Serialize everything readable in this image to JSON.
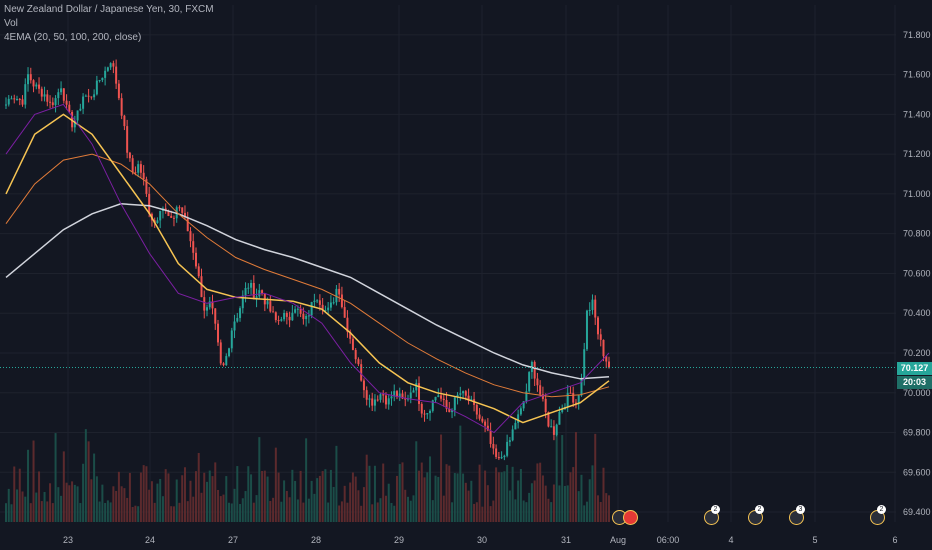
{
  "header": {
    "symbol": "New Zealand Dollar / Japanese Yen, 30, FXCM",
    "vol_label": "Vol",
    "indicator": "4EMA (20, 50, 100, 200, close)"
  },
  "colors": {
    "background": "#131722",
    "up": "#26a69a",
    "down": "#ef5350",
    "ema20": "#7b1fa2",
    "ema50": "#f6c453",
    "ema100": "#e07b39",
    "ema200": "#d1d4dc",
    "price_line": "#26a69a",
    "time_tag": "#26a69a"
  },
  "price_tags": {
    "last_price": "70.127",
    "countdown": "20:03"
  },
  "events": [
    {
      "name": "event-marker-1",
      "badge": ""
    },
    {
      "name": "event-marker-2",
      "badge": ""
    },
    {
      "name": "event-marker-3",
      "badge": "2"
    },
    {
      "name": "event-marker-4",
      "badge": "2"
    },
    {
      "name": "event-marker-5",
      "badge": "3"
    },
    {
      "name": "event-marker-6",
      "badge": "2"
    }
  ],
  "chart_data": {
    "type": "candlestick",
    "ylim": [
      69.35,
      71.95
    ],
    "y_ticks": [
      "71.800",
      "71.600",
      "71.400",
      "71.200",
      "71.000",
      "70.800",
      "70.600",
      "70.400",
      "70.200",
      "70.000",
      "69.800",
      "69.600",
      "69.400"
    ],
    "x_ticks": [
      "23",
      "24",
      "27",
      "28",
      "29",
      "30",
      "31",
      "Aug",
      "06:00",
      "4",
      "5",
      "6"
    ],
    "last_price": 70.127,
    "price_path": [
      [
        71.45,
        71.5,
        71.48,
        71.47,
        71.6,
        71.55,
        71.52,
        71.5,
        71.45,
        71.48
      ],
      [
        71.55,
        71.42,
        71.35,
        71.4,
        71.5,
        71.48,
        71.52,
        71.58,
        71.62,
        71.68
      ],
      [
        71.55,
        71.4,
        71.2,
        71.1,
        71.15,
        71.05,
        70.9,
        70.85,
        70.95,
        70.9
      ],
      [
        70.85,
        70.95,
        70.9,
        70.8,
        70.7,
        70.55,
        70.4,
        70.45,
        70.3,
        70.1
      ],
      [
        70.2,
        70.35,
        70.4,
        70.5,
        70.55,
        70.48,
        70.52,
        70.45,
        70.4,
        70.35
      ],
      [
        70.4,
        70.35,
        70.45,
        70.4,
        70.35,
        70.42,
        70.5,
        70.45,
        70.4,
        70.45
      ],
      [
        70.55,
        70.4,
        70.3,
        70.2,
        70.1,
        70.0,
        69.95,
        69.98,
        70.0,
        69.95
      ],
      [
        70.0,
        69.98,
        69.95,
        70.0,
        70.05,
        69.92,
        69.9,
        69.95,
        70.0,
        69.95
      ],
      [
        69.9,
        69.95,
        70.0,
        69.98,
        69.95,
        69.9,
        69.85,
        69.8,
        69.7,
        69.65
      ],
      [
        69.7,
        69.75,
        69.85,
        69.9,
        70.0,
        70.15,
        70.05,
        69.95,
        69.85,
        69.8
      ],
      [
        69.9,
        69.95,
        70.0,
        69.95,
        70.05,
        70.4,
        70.45,
        70.3,
        70.2,
        70.13
      ]
    ],
    "ema200": [
      70.58,
      70.7,
      70.82,
      70.9,
      70.95,
      70.94,
      70.9,
      70.84,
      70.77,
      70.72,
      70.68,
      70.63,
      70.58,
      70.5,
      70.42,
      70.34,
      70.27,
      70.2,
      70.14,
      70.1,
      70.07,
      70.08
    ],
    "ema100": [
      70.85,
      71.05,
      71.17,
      71.2,
      71.15,
      71.05,
      70.9,
      70.78,
      70.68,
      70.62,
      70.57,
      70.52,
      70.45,
      70.35,
      70.25,
      70.17,
      70.1,
      70.04,
      70.0,
      69.98,
      69.99,
      70.03
    ],
    "ema50": [
      71.0,
      71.3,
      71.4,
      71.3,
      71.1,
      70.9,
      70.65,
      70.52,
      70.48,
      70.47,
      70.46,
      70.42,
      70.3,
      70.15,
      70.05,
      70.0,
      69.97,
      69.92,
      69.85,
      69.9,
      69.95,
      70.06
    ],
    "ema20": [
      71.2,
      71.4,
      71.45,
      71.25,
      70.95,
      70.7,
      70.5,
      70.45,
      70.48,
      70.5,
      70.45,
      70.35,
      70.15,
      70.0,
      69.97,
      69.95,
      69.88,
      69.8,
      69.95,
      70.0,
      70.05,
      70.2
    ]
  }
}
